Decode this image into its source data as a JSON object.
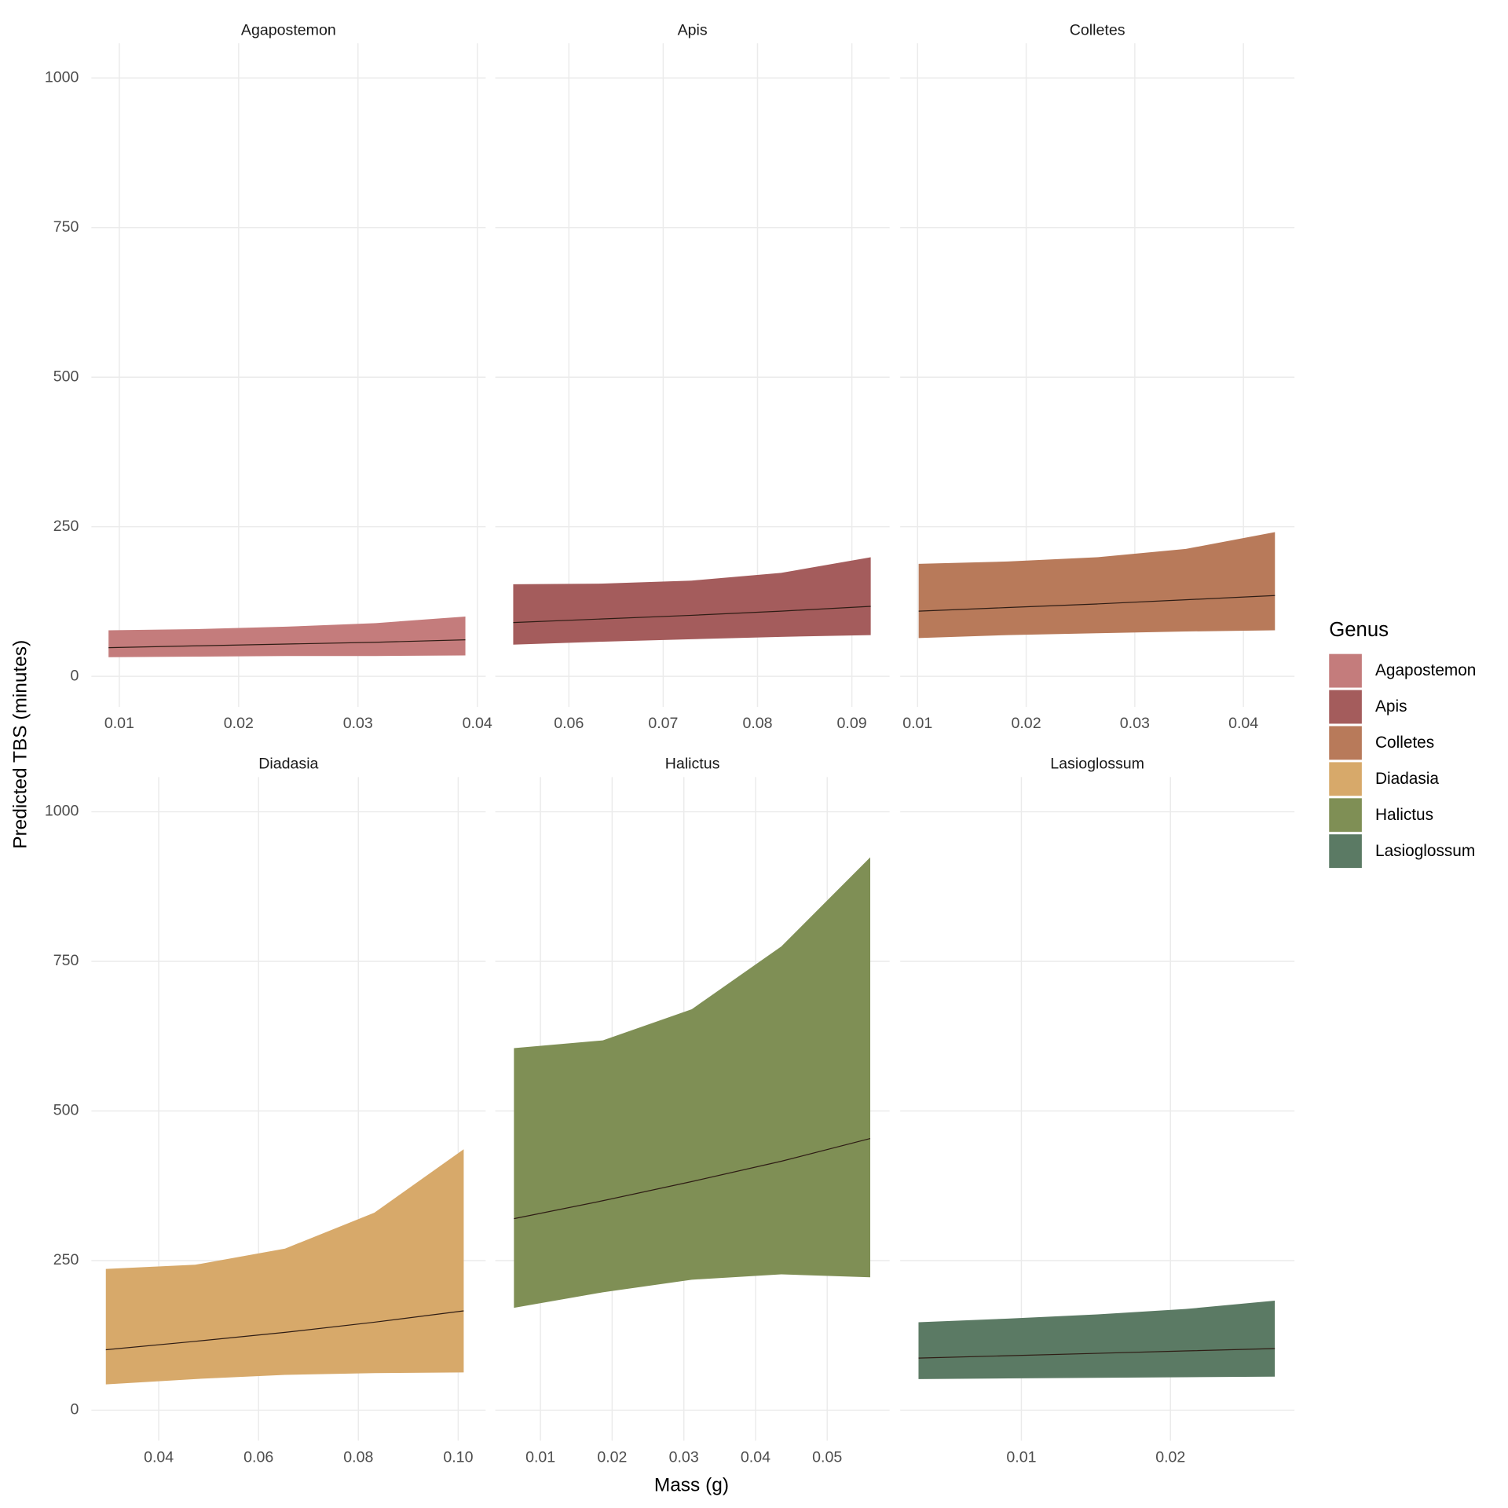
{
  "chart_data": {
    "type": "ribbon",
    "x_label": "Mass (g)",
    "y_label": "Predicted TBS (minutes)",
    "legend_title": "Genus",
    "ylim": [
      -51,
      1058
    ],
    "yticks": [
      0,
      250,
      500,
      750,
      1000
    ],
    "grid": true,
    "legend_position": "right",
    "line_color": "#2e1c14",
    "series": [
      {
        "name": "Agapostemon",
        "color": "#c47c7c",
        "xlim": [
          0.00766,
          0.0407
        ],
        "xticks": [
          0.01,
          0.02,
          0.03,
          0.04
        ],
        "x": [
          0.0091,
          0.0165,
          0.024,
          0.0315,
          0.039
        ],
        "lower": [
          32,
          33,
          34,
          34,
          35
        ],
        "values": [
          48,
          51,
          54,
          57,
          61
        ],
        "upper": [
          77,
          79,
          83,
          89,
          100
        ]
      },
      {
        "name": "Apis",
        "color": "#a45c5c",
        "xlim": [
          0.0522,
          0.094
        ],
        "xticks": [
          0.06,
          0.07,
          0.08,
          0.09
        ],
        "x": [
          0.0541,
          0.0636,
          0.073,
          0.0825,
          0.092
        ],
        "lower": [
          53,
          58,
          62,
          66,
          69
        ],
        "values": [
          90,
          96,
          102,
          109,
          117
        ],
        "upper": [
          154,
          155,
          160,
          173,
          199
        ]
      },
      {
        "name": "Colletes",
        "color": "#b87a5a",
        "xlim": [
          0.0084,
          0.0447
        ],
        "xticks": [
          0.01,
          0.02,
          0.03,
          0.04
        ],
        "x": [
          0.0101,
          0.0183,
          0.0265,
          0.0347,
          0.0429
        ],
        "lower": [
          64,
          69,
          72,
          75,
          77
        ],
        "values": [
          109,
          115,
          121,
          128,
          135
        ],
        "upper": [
          188,
          192,
          199,
          213,
          241
        ]
      },
      {
        "name": "Diadasia",
        "color": "#d7a96a",
        "xlim": [
          0.0265,
          0.1055
        ],
        "xticks": [
          0.04,
          0.06,
          0.08,
          {
            "value": 0.1,
            "label": "0.10"
          }
        ],
        "x": [
          0.0294,
          0.0473,
          0.0653,
          0.0832,
          0.1011
        ],
        "lower": [
          43,
          52,
          59,
          62,
          63
        ],
        "values": [
          101,
          115,
          130,
          147,
          166
        ],
        "upper": [
          236,
          243,
          270,
          330,
          436
        ]
      },
      {
        "name": "Halictus",
        "color": "#7f8f55",
        "xlim": [
          0.0037,
          0.0587
        ],
        "xticks": [
          0.01,
          0.02,
          0.03,
          0.04,
          0.05
        ],
        "x": [
          0.0063,
          0.0187,
          0.0311,
          0.0436,
          0.056
        ],
        "lower": [
          171,
          197,
          218,
          227,
          222
        ],
        "values": [
          320,
          350,
          382,
          416,
          454
        ],
        "upper": [
          605,
          618,
          670,
          775,
          924
        ]
      },
      {
        "name": "Lasioglossum",
        "color": "#5b7a64",
        "xlim": [
          0.00187,
          0.02832
        ],
        "xticks": [
          0.01,
          0.02
        ],
        "x": [
          0.0031,
          0.0091,
          0.0151,
          0.021,
          0.027
        ],
        "lower": [
          52,
          53,
          54,
          55,
          56
        ],
        "values": [
          87,
          91,
          95,
          99,
          103
        ],
        "upper": [
          147,
          153,
          160,
          169,
          183
        ]
      }
    ]
  }
}
